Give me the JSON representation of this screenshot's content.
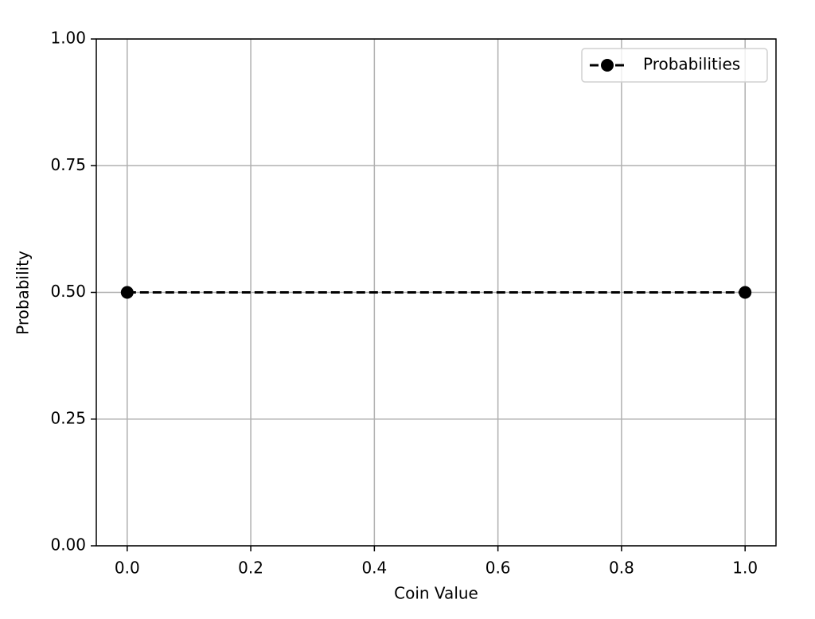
{
  "chart_data": {
    "type": "line",
    "x_label": "Coin Value",
    "y_label": "Probability",
    "x": [
      0,
      1
    ],
    "series": [
      {
        "name": "Probabilities",
        "color": "#000000",
        "values": [
          0.5,
          0.5
        ]
      }
    ],
    "xlim": [
      -0.05,
      1.05
    ],
    "ylim": [
      0,
      1
    ],
    "xticks": [
      {
        "value": 0,
        "label": "0.0"
      },
      0.2,
      0.4,
      0.6,
      0.8,
      {
        "value": 1,
        "label": "1.0"
      }
    ],
    "yticks": [
      {
        "value": 0,
        "label": "0.00"
      },
      0.25,
      {
        "value": 0.5,
        "label": "0.50"
      },
      0.75,
      {
        "value": 1,
        "label": "1.00"
      }
    ],
    "grid": true,
    "legend": "upper right",
    "line_style": "dashed",
    "marker": "circle"
  }
}
